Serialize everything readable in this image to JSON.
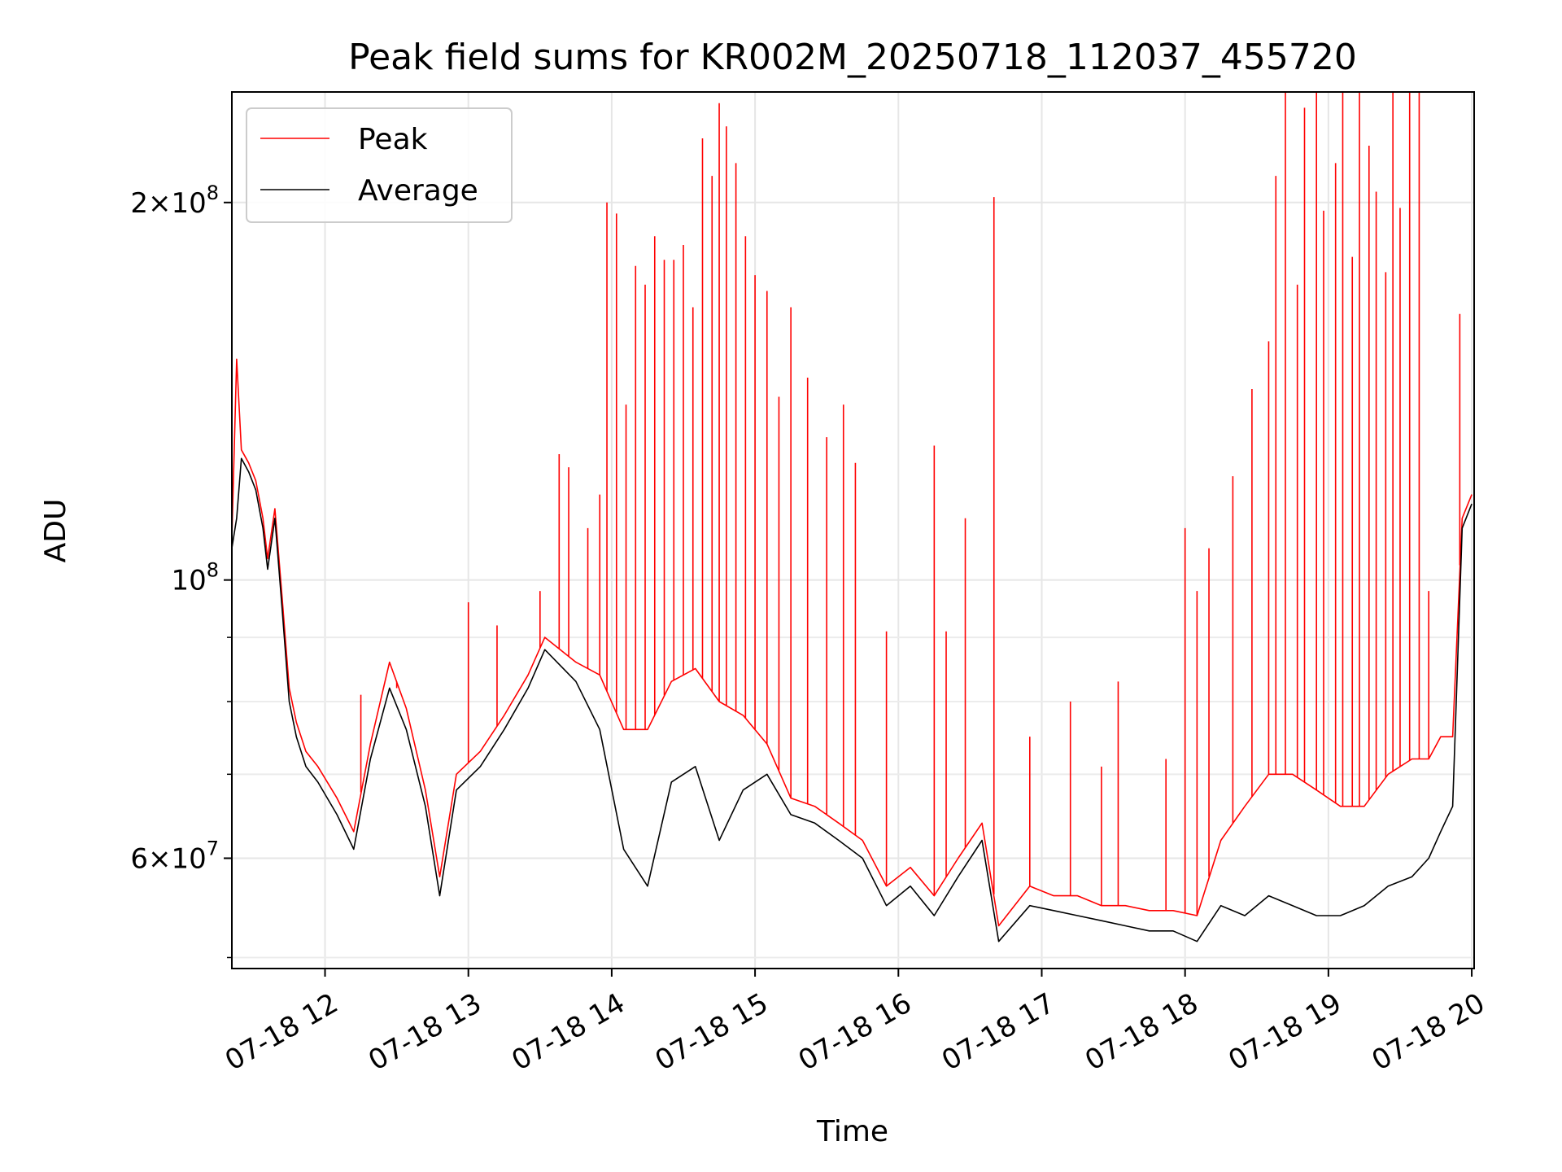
{
  "chart_data": {
    "type": "line",
    "title": "Peak field sums for KR002M_20250718_112037_455720",
    "xlabel": "Time",
    "ylabel": "ADU",
    "y_scale": "log",
    "ylim": [
      49000000,
      245000000
    ],
    "xlim": [
      "2025-07-18 11:21",
      "2025-07-18 20:01"
    ],
    "grid": true,
    "legend_position": "upper left",
    "x_ticks": [
      {
        "value": "2025-07-18 12:00",
        "label": "07-18 12"
      },
      {
        "value": "2025-07-18 13:00",
        "label": "07-18 13"
      },
      {
        "value": "2025-07-18 14:00",
        "label": "07-18 14"
      },
      {
        "value": "2025-07-18 15:00",
        "label": "07-18 15"
      },
      {
        "value": "2025-07-18 16:00",
        "label": "07-18 16"
      },
      {
        "value": "2025-07-18 17:00",
        "label": "07-18 17"
      },
      {
        "value": "2025-07-18 18:00",
        "label": "07-18 18"
      },
      {
        "value": "2025-07-18 19:00",
        "label": "07-18 19"
      },
      {
        "value": "2025-07-18 20:00",
        "label": "07-18 20"
      }
    ],
    "y_major_ticks": [
      {
        "value": 60000000,
        "mant": "6",
        "exp": "7"
      },
      {
        "value": 100000000,
        "mant": "",
        "exp": "8"
      },
      {
        "value": 200000000,
        "mant": "2",
        "exp": "8"
      }
    ],
    "y_minor_ticks": [
      50000000,
      70000000,
      80000000,
      90000000
    ],
    "series": [
      {
        "name": "Average",
        "color": "#000000",
        "x": [
          "2025-07-18 11:21",
          "2025-07-18 11:23",
          "2025-07-18 11:25",
          "2025-07-18 11:28",
          "2025-07-18 11:31",
          "2025-07-18 11:34",
          "2025-07-18 11:36",
          "2025-07-18 11:39",
          "2025-07-18 11:42",
          "2025-07-18 11:45",
          "2025-07-18 11:48",
          "2025-07-18 11:52",
          "2025-07-18 11:57",
          "2025-07-18 12:05",
          "2025-07-18 12:12",
          "2025-07-18 12:19",
          "2025-07-18 12:27",
          "2025-07-18 12:34",
          "2025-07-18 12:42",
          "2025-07-18 12:48",
          "2025-07-18 12:55",
          "2025-07-18 13:05",
          "2025-07-18 13:15",
          "2025-07-18 13:25",
          "2025-07-18 13:32",
          "2025-07-18 13:45",
          "2025-07-18 13:55",
          "2025-07-18 14:05",
          "2025-07-18 14:15",
          "2025-07-18 14:25",
          "2025-07-18 14:35",
          "2025-07-18 14:45",
          "2025-07-18 14:55",
          "2025-07-18 15:05",
          "2025-07-18 15:15",
          "2025-07-18 15:25",
          "2025-07-18 15:35",
          "2025-07-18 15:45",
          "2025-07-18 15:55",
          "2025-07-18 16:05",
          "2025-07-18 16:15",
          "2025-07-18 16:25",
          "2025-07-18 16:35",
          "2025-07-18 16:42",
          "2025-07-18 16:55",
          "2025-07-18 17:05",
          "2025-07-18 17:15",
          "2025-07-18 17:25",
          "2025-07-18 17:35",
          "2025-07-18 17:45",
          "2025-07-18 17:55",
          "2025-07-18 18:05",
          "2025-07-18 18:15",
          "2025-07-18 18:25",
          "2025-07-18 18:35",
          "2025-07-18 18:45",
          "2025-07-18 18:55",
          "2025-07-18 19:05",
          "2025-07-18 19:15",
          "2025-07-18 19:25",
          "2025-07-18 19:35",
          "2025-07-18 19:42",
          "2025-07-18 19:47",
          "2025-07-18 19:52",
          "2025-07-18 19:56",
          "2025-07-18 20:00"
        ],
        "y": [
          106000000,
          112000000,
          125000000,
          122000000,
          118000000,
          110000000,
          102000000,
          112000000,
          95000000,
          80000000,
          75000000,
          71000000,
          69000000,
          65000000,
          61000000,
          72000000,
          82000000,
          76000000,
          66000000,
          56000000,
          68000000,
          71000000,
          76000000,
          82000000,
          88000000,
          83000000,
          76000000,
          61000000,
          57000000,
          69000000,
          71000000,
          62000000,
          68000000,
          70000000,
          65000000,
          64000000,
          62000000,
          60000000,
          55000000,
          57000000,
          54000000,
          58000000,
          62000000,
          51500000,
          55000000,
          54500000,
          54000000,
          53500000,
          53000000,
          52500000,
          52500000,
          51500000,
          55000000,
          54000000,
          56000000,
          55000000,
          54000000,
          54000000,
          55000000,
          57000000,
          58000000,
          60000000,
          63000000,
          66000000,
          110000000,
          115000000
        ]
      },
      {
        "name": "Peak",
        "color": "#ff0000",
        "baseline_x": [
          "2025-07-18 11:21",
          "2025-07-18 11:23",
          "2025-07-18 11:25",
          "2025-07-18 11:28",
          "2025-07-18 11:31",
          "2025-07-18 11:34",
          "2025-07-18 11:36",
          "2025-07-18 11:39",
          "2025-07-18 11:42",
          "2025-07-18 11:45",
          "2025-07-18 11:48",
          "2025-07-18 11:52",
          "2025-07-18 11:57",
          "2025-07-18 12:05",
          "2025-07-18 12:12",
          "2025-07-18 12:19",
          "2025-07-18 12:27",
          "2025-07-18 12:34",
          "2025-07-18 12:42",
          "2025-07-18 12:48",
          "2025-07-18 12:55",
          "2025-07-18 13:05",
          "2025-07-18 13:15",
          "2025-07-18 13:25",
          "2025-07-18 13:32",
          "2025-07-18 13:45",
          "2025-07-18 13:55",
          "2025-07-18 14:05",
          "2025-07-18 14:15",
          "2025-07-18 14:25",
          "2025-07-18 14:35",
          "2025-07-18 14:45",
          "2025-07-18 14:55",
          "2025-07-18 15:05",
          "2025-07-18 15:15",
          "2025-07-18 15:25",
          "2025-07-18 15:35",
          "2025-07-18 15:45",
          "2025-07-18 15:55",
          "2025-07-18 16:05",
          "2025-07-18 16:15",
          "2025-07-18 16:25",
          "2025-07-18 16:35",
          "2025-07-18 16:42",
          "2025-07-18 16:55",
          "2025-07-18 17:05",
          "2025-07-18 17:15",
          "2025-07-18 17:25",
          "2025-07-18 17:35",
          "2025-07-18 17:45",
          "2025-07-18 17:55",
          "2025-07-18 18:05",
          "2025-07-18 18:15",
          "2025-07-18 18:25",
          "2025-07-18 18:35",
          "2025-07-18 18:45",
          "2025-07-18 18:55",
          "2025-07-18 19:05",
          "2025-07-18 19:15",
          "2025-07-18 19:25",
          "2025-07-18 19:35",
          "2025-07-18 19:42",
          "2025-07-18 19:47",
          "2025-07-18 19:52",
          "2025-07-18 19:56",
          "2025-07-18 20:00"
        ],
        "baseline_y": [
          108000000,
          150000000,
          127000000,
          124000000,
          120000000,
          112000000,
          104000000,
          114000000,
          97000000,
          82000000,
          77000000,
          73000000,
          71000000,
          67000000,
          63000000,
          74000000,
          86000000,
          79000000,
          68000000,
          58000000,
          70000000,
          73000000,
          78000000,
          84000000,
          90000000,
          86000000,
          84000000,
          76000000,
          76000000,
          83000000,
          85000000,
          80000000,
          78000000,
          74000000,
          67000000,
          66000000,
          64000000,
          62000000,
          57000000,
          59000000,
          56000000,
          60000000,
          64000000,
          53000000,
          57000000,
          56000000,
          56000000,
          55000000,
          55000000,
          54500000,
          54500000,
          54000000,
          62000000,
          66000000,
          70000000,
          70000000,
          68000000,
          66000000,
          66000000,
          70000000,
          72000000,
          72000000,
          75000000,
          75000000,
          112000000,
          117000000
        ],
        "spikes_x": [
          "2025-07-18 12:15",
          "2025-07-18 12:30",
          "2025-07-18 13:00",
          "2025-07-18 13:12",
          "2025-07-18 13:30",
          "2025-07-18 13:38",
          "2025-07-18 13:42",
          "2025-07-18 13:50",
          "2025-07-18 13:55",
          "2025-07-18 13:58",
          "2025-07-18 14:02",
          "2025-07-18 14:06",
          "2025-07-18 14:10",
          "2025-07-18 14:14",
          "2025-07-18 14:18",
          "2025-07-18 14:22",
          "2025-07-18 14:26",
          "2025-07-18 14:30",
          "2025-07-18 14:34",
          "2025-07-18 14:38",
          "2025-07-18 14:42",
          "2025-07-18 14:45",
          "2025-07-18 14:48",
          "2025-07-18 14:52",
          "2025-07-18 14:56",
          "2025-07-18 15:00",
          "2025-07-18 15:05",
          "2025-07-18 15:10",
          "2025-07-18 15:15",
          "2025-07-18 15:22",
          "2025-07-18 15:30",
          "2025-07-18 15:37",
          "2025-07-18 15:42",
          "2025-07-18 15:55",
          "2025-07-18 16:15",
          "2025-07-18 16:20",
          "2025-07-18 16:28",
          "2025-07-18 16:40",
          "2025-07-18 16:55",
          "2025-07-18 17:12",
          "2025-07-18 17:25",
          "2025-07-18 17:32",
          "2025-07-18 17:52",
          "2025-07-18 18:00",
          "2025-07-18 18:05",
          "2025-07-18 18:10",
          "2025-07-18 18:20",
          "2025-07-18 18:28",
          "2025-07-18 18:35",
          "2025-07-18 18:38",
          "2025-07-18 18:42",
          "2025-07-18 18:47",
          "2025-07-18 18:50",
          "2025-07-18 18:55",
          "2025-07-18 18:58",
          "2025-07-18 19:03",
          "2025-07-18 19:06",
          "2025-07-18 19:10",
          "2025-07-18 19:13",
          "2025-07-18 19:17",
          "2025-07-18 19:20",
          "2025-07-18 19:24",
          "2025-07-18 19:27",
          "2025-07-18 19:30",
          "2025-07-18 19:34",
          "2025-07-18 19:38",
          "2025-07-18 19:42",
          "2025-07-18 19:55"
        ],
        "spikes_y": [
          81000000,
          82000000,
          96000000,
          92000000,
          98000000,
          126000000,
          123000000,
          110000000,
          117000000,
          200000000,
          196000000,
          138000000,
          178000000,
          172000000,
          188000000,
          180000000,
          180000000,
          185000000,
          165000000,
          225000000,
          210000000,
          240000000,
          230000000,
          215000000,
          188000000,
          175000000,
          170000000,
          140000000,
          165000000,
          145000000,
          130000000,
          138000000,
          124000000,
          91000000,
          128000000,
          91000000,
          112000000,
          202000000,
          75000000,
          80000000,
          71000000,
          83000000,
          72000000,
          110000000,
          98000000,
          106000000,
          121000000,
          142000000,
          155000000,
          210000000,
          245000000,
          172000000,
          238000000,
          245000000,
          197000000,
          215000000,
          245000000,
          181000000,
          245000000,
          222000000,
          204000000,
          176000000,
          245000000,
          198000000,
          245000000,
          245000000,
          98000000,
          163000000
        ]
      }
    ]
  }
}
